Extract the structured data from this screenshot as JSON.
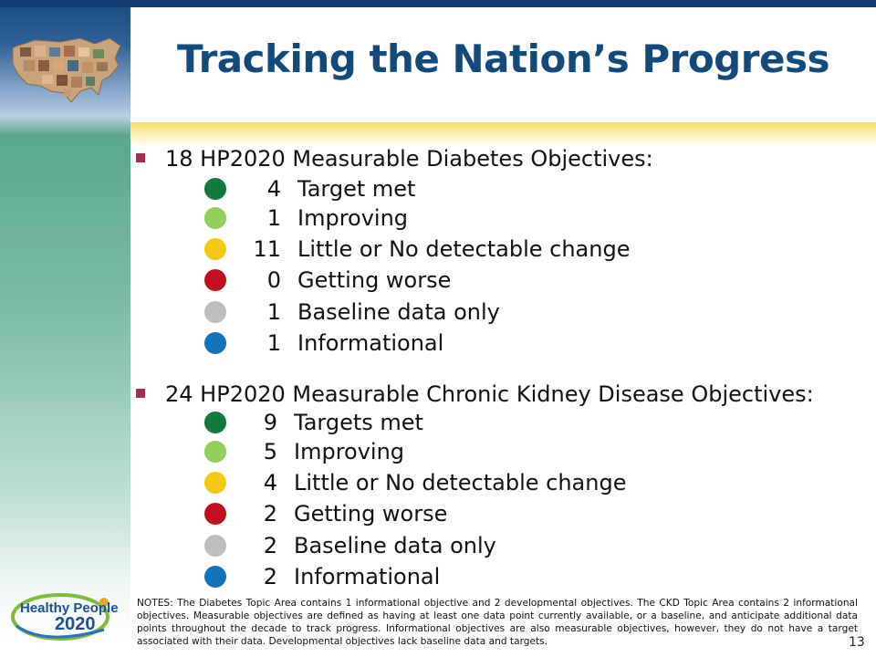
{
  "title": "Tracking the Nation’s Progress",
  "colors": {
    "target_met": "#0e7a3c",
    "improving": "#8fcf5a",
    "little_change": "#f6c711",
    "getting_worse": "#c0101e",
    "baseline_only": "#bdbdbd",
    "informational": "#1473bd",
    "bullet": "#a3304e",
    "title": "#124a7b"
  },
  "diabetes": {
    "heading": "18 HP2020 Measurable Diabetes Objectives:",
    "items": [
      {
        "count": "4",
        "label": "Target met",
        "color": "target_met"
      },
      {
        "count": "1",
        "label": "Improving",
        "color": "improving"
      },
      {
        "count": "11",
        "label": "Little or No detectable change",
        "color": "little_change"
      },
      {
        "count": "0",
        "label": "Getting worse",
        "color": "getting_worse"
      },
      {
        "count": "1",
        "label": "Baseline data only",
        "color": "baseline_only"
      },
      {
        "count": "1",
        "label": "Informational",
        "color": "informational"
      }
    ]
  },
  "ckd": {
    "heading": "24 HP2020 Measurable Chronic Kidney Disease Objectives:",
    "items": [
      {
        "count": "9",
        "label": "Targets met",
        "color": "target_met"
      },
      {
        "count": "5",
        "label": "Improving",
        "color": "improving"
      },
      {
        "count": "4",
        "label": "Little or No detectable change",
        "color": "little_change"
      },
      {
        "count": "2",
        "label": "Getting worse",
        "color": "getting_worse"
      },
      {
        "count": "2",
        "label": "Baseline data only",
        "color": "baseline_only"
      },
      {
        "count": "2",
        "label": "Informational",
        "color": "informational"
      }
    ]
  },
  "notes": "NOTES: The Diabetes Topic Area contains 1 informational objective and 2 developmental objectives. The CKD Topic Area contains 2 informational objectives. Measurable objectives are defined as having at least one data point currently available, or a baseline, and anticipate additional data points throughout the decade to track progress. Informational objectives are also measurable objectives, however, they do not have a target associated with their data. Developmental objectives lack baseline data and targets.",
  "page_number": "13",
  "logo": {
    "line1": "Healthy People",
    "line2": "2020"
  }
}
